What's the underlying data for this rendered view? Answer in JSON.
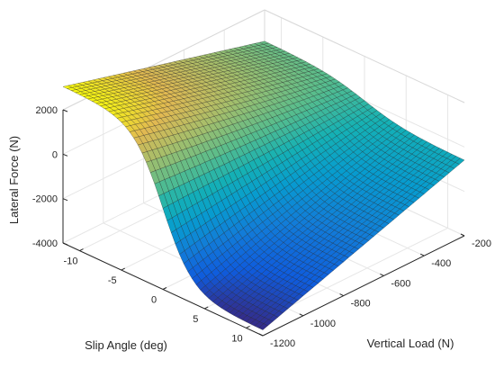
{
  "chart_data": {
    "type": "surface",
    "title": "",
    "xlabel": "Slip Angle (deg)",
    "ylabel": "Vertical Load (N)",
    "zlabel": "Lateral Force (N)",
    "xlim": [
      -12,
      12
    ],
    "ylim": [
      -1200,
      -200
    ],
    "zlim": [
      -4000,
      2000
    ],
    "x_ticks": [
      -10,
      -5,
      0,
      5,
      10
    ],
    "x_tick_labels": [
      "-10",
      "-5",
      "0",
      "5",
      "10"
    ],
    "y_ticks": [
      -1200,
      -1000,
      -800,
      -600,
      -400,
      -200
    ],
    "y_tick_labels": [
      "-1200",
      "-1000",
      "-800",
      "-600",
      "-400",
      "-200"
    ],
    "z_ticks": [
      -4000,
      -2000,
      0,
      2000
    ],
    "z_tick_labels": [
      "-4000",
      "-2000",
      "0",
      "2000"
    ],
    "grid": true,
    "box": "open",
    "colormap": "parula",
    "surface": {
      "x_range": [
        -12,
        12
      ],
      "y_range": [
        -1200,
        -200
      ],
      "corner_values": {
        "x_min_y_min": 3000,
        "x_min_y_max": 600,
        "x_max_y_min": -3700,
        "x_max_y_max": -600
      }
    }
  }
}
